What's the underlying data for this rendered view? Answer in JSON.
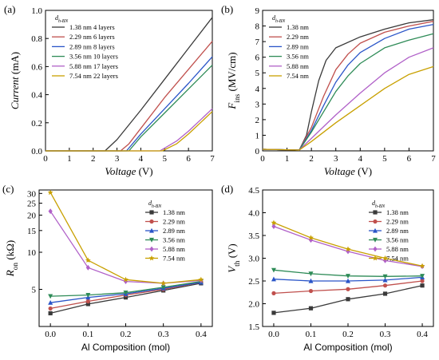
{
  "chart_data": [
    {
      "panel": "(a)",
      "type": "line",
      "xlabel": "Voltage (V)",
      "ylabel": "Current (mA)",
      "xlim": [
        0,
        7
      ],
      "ylim": [
        0,
        1.0
      ],
      "xticks": [
        0,
        1,
        2,
        3,
        4,
        5,
        6,
        7
      ],
      "yticks": [
        0.0,
        0.2,
        0.4,
        0.6,
        0.8,
        1.0
      ],
      "legend_title": "d",
      "legend_title_sub": "h-BN",
      "legend_position": "top-left",
      "series": [
        {
          "name": "1.38 nm 4 layers",
          "color": "#3a3a3a",
          "x": [
            0,
            2.5,
            3.0,
            4.0,
            5.0,
            6.0,
            7.0
          ],
          "y": [
            0,
            0,
            0.08,
            0.29,
            0.51,
            0.73,
            0.95
          ]
        },
        {
          "name": "2.29 nm 6 layers",
          "color": "#c0504d",
          "x": [
            0,
            3.15,
            3.5,
            4.0,
            5.0,
            6.0,
            7.0
          ],
          "y": [
            0,
            0,
            0.05,
            0.16,
            0.38,
            0.58,
            0.78
          ]
        },
        {
          "name": "2.89 nm 8 layers",
          "color": "#2a55c8",
          "x": [
            0,
            3.4,
            4.0,
            5.0,
            6.0,
            7.0
          ],
          "y": [
            0,
            0,
            0.12,
            0.3,
            0.48,
            0.67
          ]
        },
        {
          "name": "3.56 nm 10 layers",
          "color": "#2e8b57",
          "x": [
            0,
            3.5,
            4.0,
            5.0,
            6.0,
            7.0
          ],
          "y": [
            0,
            0,
            0.1,
            0.27,
            0.44,
            0.61
          ]
        },
        {
          "name": "5.88 nm 17 layers",
          "color": "#b060c8",
          "x": [
            0,
            4.8,
            5.5,
            6.0,
            6.5,
            7.0
          ],
          "y": [
            0,
            0,
            0.07,
            0.14,
            0.22,
            0.3
          ]
        },
        {
          "name": "7.54 nm 22 layers",
          "color": "#c8a000",
          "x": [
            0,
            4.9,
            5.5,
            6.0,
            6.5,
            7.0
          ],
          "y": [
            0,
            0,
            0.05,
            0.12,
            0.2,
            0.28
          ]
        }
      ]
    },
    {
      "panel": "(b)",
      "type": "line",
      "xlabel": "Voltage (V)",
      "ylabel": "F",
      "ylabel_sub": "ins",
      "ylabel_unit": " (MV/cm)",
      "xlim": [
        0,
        7
      ],
      "ylim": [
        0,
        9
      ],
      "xticks": [
        0,
        1,
        2,
        3,
        4,
        5,
        6,
        7
      ],
      "yticks": [
        0,
        1,
        2,
        3,
        4,
        5,
        6,
        7,
        8,
        9
      ],
      "legend_title": "d",
      "legend_title_sub": "h-BN",
      "legend_position": "top-left",
      "series": [
        {
          "name": "1.38 nm",
          "color": "#3a3a3a",
          "x": [
            0,
            1.5,
            1.8,
            2.0,
            2.3,
            2.6,
            3.0,
            4.0,
            5.0,
            6.0,
            7.0
          ],
          "y": [
            0.1,
            0.05,
            1.0,
            2.5,
            4.5,
            5.8,
            6.6,
            7.3,
            7.8,
            8.2,
            8.4
          ]
        },
        {
          "name": "2.29 nm",
          "color": "#c0504d",
          "x": [
            0,
            1.5,
            2.0,
            2.5,
            3.0,
            3.5,
            4.0,
            5.0,
            6.0,
            7.0
          ],
          "y": [
            0.1,
            0.05,
            1.5,
            3.5,
            5.2,
            6.2,
            6.9,
            7.6,
            8.0,
            8.3
          ]
        },
        {
          "name": "2.89 nm",
          "color": "#2a55c8",
          "x": [
            0,
            1.5,
            2.0,
            2.5,
            3.0,
            3.5,
            4.0,
            5.0,
            6.0,
            7.0
          ],
          "y": [
            0.1,
            0.05,
            1.3,
            2.9,
            4.4,
            5.5,
            6.3,
            7.2,
            7.8,
            8.1
          ]
        },
        {
          "name": "3.56 nm",
          "color": "#2e8b57",
          "x": [
            0,
            1.5,
            2.0,
            2.5,
            3.0,
            3.5,
            4.0,
            5.0,
            6.0,
            7.0
          ],
          "y": [
            0.1,
            0.05,
            1.2,
            2.5,
            3.8,
            4.8,
            5.6,
            6.6,
            7.1,
            7.5
          ]
        },
        {
          "name": "5.88 nm",
          "color": "#b060c8",
          "x": [
            0,
            1.5,
            2.0,
            3.0,
            4.0,
            5.0,
            6.0,
            7.0
          ],
          "y": [
            0.1,
            0.05,
            0.8,
            2.3,
            3.7,
            5.0,
            6.0,
            6.6
          ]
        },
        {
          "name": "7.54 nm",
          "color": "#c8a000",
          "x": [
            0,
            1.5,
            2.0,
            3.0,
            4.0,
            5.0,
            6.0,
            7.0
          ],
          "y": [
            0.1,
            0.05,
            0.6,
            1.8,
            2.9,
            4.0,
            4.9,
            5.4
          ]
        }
      ]
    },
    {
      "panel": "(c)",
      "type": "line",
      "xlabel": "Al Composition (mol)",
      "ylabel": "R",
      "ylabel_sub": "on",
      "ylabel_unit": " (kΩ)",
      "xlim": [
        -0.03,
        0.43
      ],
      "ylim": [
        2.5,
        32
      ],
      "y_scale": "log",
      "xticks": [
        0.0,
        0.1,
        0.2,
        0.3,
        0.4
      ],
      "yticks": [
        5,
        10,
        15,
        20,
        25,
        30
      ],
      "legend_title": "d",
      "legend_title_sub": "h-BN",
      "legend_position": "top-right",
      "series": [
        {
          "name": "1.38 nm",
          "color": "#3a3a3a",
          "marker": "square",
          "x": [
            0.0,
            0.1,
            0.2,
            0.3,
            0.4
          ],
          "y": [
            3.2,
            3.8,
            4.3,
            4.9,
            5.6
          ]
        },
        {
          "name": "2.29 nm",
          "color": "#c0504d",
          "marker": "circle",
          "x": [
            0.0,
            0.1,
            0.2,
            0.3,
            0.4
          ],
          "y": [
            3.5,
            4.0,
            4.5,
            5.0,
            5.7
          ]
        },
        {
          "name": "2.89 nm",
          "color": "#2a55c8",
          "marker": "triangle-up",
          "x": [
            0.0,
            0.1,
            0.2,
            0.3,
            0.4
          ],
          "y": [
            3.9,
            4.3,
            4.6,
            5.1,
            5.7
          ]
        },
        {
          "name": "3.56 nm",
          "color": "#2e8b57",
          "marker": "triangle-down",
          "x": [
            0.0,
            0.1,
            0.2,
            0.3,
            0.4
          ],
          "y": [
            4.4,
            4.5,
            4.7,
            5.2,
            5.8
          ]
        },
        {
          "name": "5.88 nm",
          "color": "#b060c8",
          "marker": "diamond",
          "x": [
            0.0,
            0.1,
            0.2,
            0.3,
            0.4
          ],
          "y": [
            21.5,
            7.5,
            5.8,
            5.6,
            5.9
          ]
        },
        {
          "name": "7.54 nm",
          "color": "#c8a000",
          "marker": "star",
          "x": [
            0.0,
            0.1,
            0.2,
            0.3,
            0.4
          ],
          "y": [
            30.5,
            8.6,
            6.0,
            5.6,
            6.0
          ]
        }
      ]
    },
    {
      "panel": "(d)",
      "type": "line",
      "xlabel": "Al Composition (mol)",
      "ylabel": "V",
      "ylabel_sub": "th",
      "ylabel_unit": " (V)",
      "xlim": [
        -0.03,
        0.43
      ],
      "ylim": [
        1.5,
        4.5
      ],
      "xticks": [
        0.0,
        0.1,
        0.2,
        0.3,
        0.4
      ],
      "yticks": [
        1.5,
        2.0,
        2.5,
        3.0,
        3.5,
        4.0,
        4.5
      ],
      "legend_title": "d",
      "legend_title_sub": "h-BN",
      "legend_position": "top-right",
      "series": [
        {
          "name": "1.38 nm",
          "color": "#3a3a3a",
          "marker": "square",
          "x": [
            0.0,
            0.1,
            0.2,
            0.3,
            0.4
          ],
          "y": [
            1.8,
            1.9,
            2.1,
            2.22,
            2.4
          ]
        },
        {
          "name": "2.29 nm",
          "color": "#c0504d",
          "marker": "circle",
          "x": [
            0.0,
            0.1,
            0.2,
            0.3,
            0.4
          ],
          "y": [
            2.23,
            2.28,
            2.32,
            2.4,
            2.5
          ]
        },
        {
          "name": "2.89 nm",
          "color": "#2a55c8",
          "marker": "triangle-up",
          "x": [
            0.0,
            0.1,
            0.2,
            0.3,
            0.4
          ],
          "y": [
            2.54,
            2.5,
            2.5,
            2.52,
            2.58
          ]
        },
        {
          "name": "3.56 nm",
          "color": "#2e8b57",
          "marker": "triangle-down",
          "x": [
            0.0,
            0.1,
            0.2,
            0.3,
            0.4
          ],
          "y": [
            2.74,
            2.66,
            2.61,
            2.6,
            2.61
          ]
        },
        {
          "name": "5.88 nm",
          "color": "#b060c8",
          "marker": "diamond",
          "x": [
            0.0,
            0.1,
            0.2,
            0.3,
            0.4
          ],
          "y": [
            3.7,
            3.4,
            3.15,
            2.95,
            2.82
          ]
        },
        {
          "name": "7.54 nm",
          "color": "#c8a000",
          "marker": "star",
          "x": [
            0.0,
            0.1,
            0.2,
            0.3,
            0.4
          ],
          "y": [
            3.78,
            3.45,
            3.2,
            3.0,
            2.83
          ]
        }
      ]
    }
  ]
}
